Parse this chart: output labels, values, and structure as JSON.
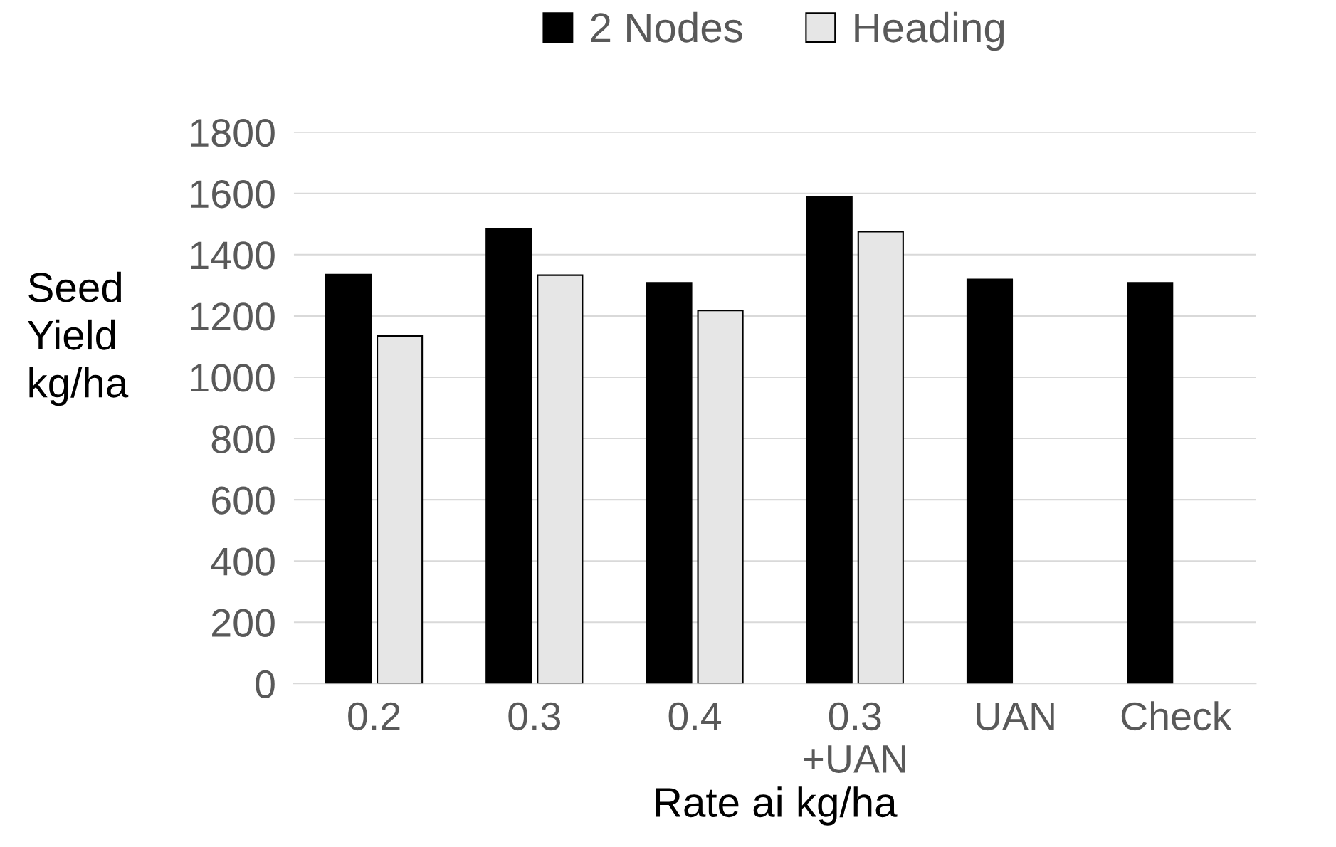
{
  "chart_data": {
    "type": "bar",
    "xlabel": "Rate ai kg/ha",
    "ylabel": "Seed\nYield\nkg/ha",
    "categories": [
      "0.2",
      "0.3",
      "0.4",
      "0.3\n+UAN",
      "UAN",
      "Check"
    ],
    "series": [
      {
        "name": "2 Nodes",
        "color": "#000000",
        "values": [
          1335,
          1483,
          1308,
          1589,
          1319,
          1308
        ]
      },
      {
        "name": "Heading",
        "color": "#e6e6e6",
        "values": [
          1135,
          1333,
          1218,
          1475,
          null,
          null
        ]
      }
    ],
    "ylim": [
      0,
      1800
    ],
    "yticks": [
      0,
      200,
      400,
      600,
      800,
      1000,
      1200,
      1400,
      1600,
      1800
    ],
    "grid": "y",
    "legend": "top"
  }
}
